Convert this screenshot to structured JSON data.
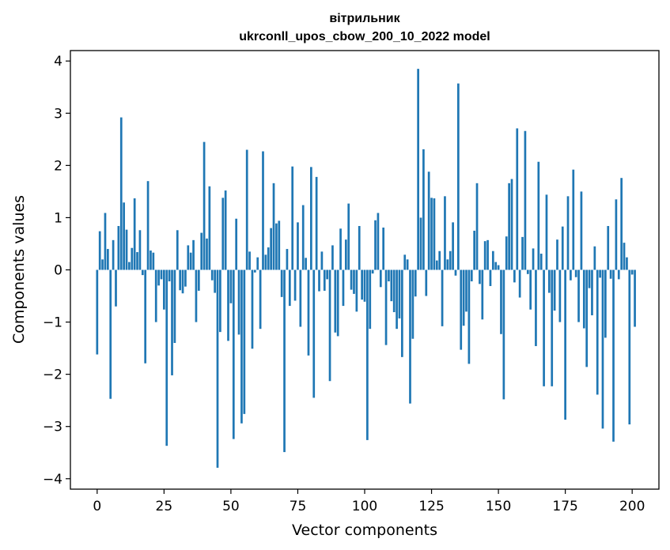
{
  "chart_data": {
    "type": "bar",
    "title_line1": "вітрильник",
    "title_line2": "ukrconll_upos_cbow_200_10_2022 model",
    "xlabel": "Vector components",
    "ylabel": "Components values",
    "xlim": [
      -10,
      210
    ],
    "ylim": [
      -4.2,
      4.2
    ],
    "x_ticks": [
      0,
      25,
      50,
      75,
      100,
      125,
      150,
      175,
      200
    ],
    "y_ticks": [
      -4,
      -3,
      -2,
      -1,
      0,
      1,
      2,
      3,
      4
    ],
    "grid": false,
    "bar_color": "#1f77b4",
    "x_start": 0,
    "values": [
      -1.62,
      0.74,
      0.2,
      1.09,
      0.4,
      -2.47,
      0.57,
      -0.7,
      0.84,
      2.92,
      1.29,
      0.77,
      0.15,
      0.42,
      1.37,
      0.34,
      0.76,
      -0.1,
      -1.79,
      1.7,
      0.37,
      0.33,
      -1.0,
      -0.3,
      -0.18,
      -0.76,
      -3.37,
      -0.22,
      -2.02,
      -1.4,
      0.76,
      -0.39,
      -0.45,
      -0.32,
      0.47,
      0.33,
      0.57,
      -1.0,
      -0.4,
      0.71,
      2.45,
      0.6,
      1.6,
      -0.2,
      -0.44,
      -3.79,
      -1.19,
      1.38,
      1.52,
      -1.36,
      -0.64,
      -3.24,
      0.98,
      -1.24,
      -2.94,
      -2.76,
      2.3,
      0.35,
      -1.51,
      -0.05,
      0.24,
      -1.13,
      2.27,
      0.29,
      0.43,
      0.8,
      1.66,
      0.89,
      0.94,
      -0.52,
      -3.49,
      0.4,
      -0.69,
      1.98,
      -0.59,
      0.91,
      -1.09,
      1.24,
      0.23,
      -1.64,
      1.97,
      -2.45,
      1.78,
      -0.41,
      0.35,
      -0.4,
      -0.18,
      -2.13,
      0.47,
      -1.2,
      -1.27,
      0.79,
      -0.69,
      0.58,
      1.27,
      -0.38,
      -0.46,
      -0.8,
      0.84,
      -0.57,
      -0.61,
      -3.26,
      -1.13,
      -0.07,
      0.95,
      1.09,
      -0.33,
      0.81,
      -1.44,
      -0.22,
      -0.6,
      -0.81,
      -1.13,
      -0.93,
      -1.67,
      0.29,
      0.2,
      -2.56,
      -1.32,
      -0.51,
      3.85,
      1.0,
      2.31,
      -0.5,
      1.88,
      1.38,
      1.37,
      0.18,
      0.36,
      -1.08,
      1.41,
      0.2,
      0.36,
      0.91,
      -0.11,
      3.57,
      -1.53,
      -1.07,
      -0.8,
      -1.8,
      -0.22,
      0.75,
      1.66,
      -0.27,
      -0.95,
      0.55,
      0.57,
      -0.31,
      0.36,
      0.15,
      0.09,
      -1.23,
      -2.48,
      0.64,
      1.66,
      1.74,
      -0.24,
      2.71,
      -0.53,
      0.63,
      2.66,
      -0.08,
      -0.76,
      0.41,
      -1.46,
      2.07,
      0.31,
      -2.23,
      1.44,
      -0.44,
      -2.23,
      -0.78,
      0.58,
      -1.0,
      0.83,
      -2.87,
      1.41,
      -0.2,
      1.92,
      -0.14,
      -1.0,
      1.5,
      -1.12,
      -1.86,
      -0.35,
      -0.87,
      0.45,
      -2.39,
      -0.15,
      -3.04,
      -1.3,
      0.84,
      -0.17,
      -3.29,
      1.35,
      -0.18,
      1.76,
      0.52,
      0.24,
      -2.96,
      -0.09,
      -1.09
    ]
  }
}
